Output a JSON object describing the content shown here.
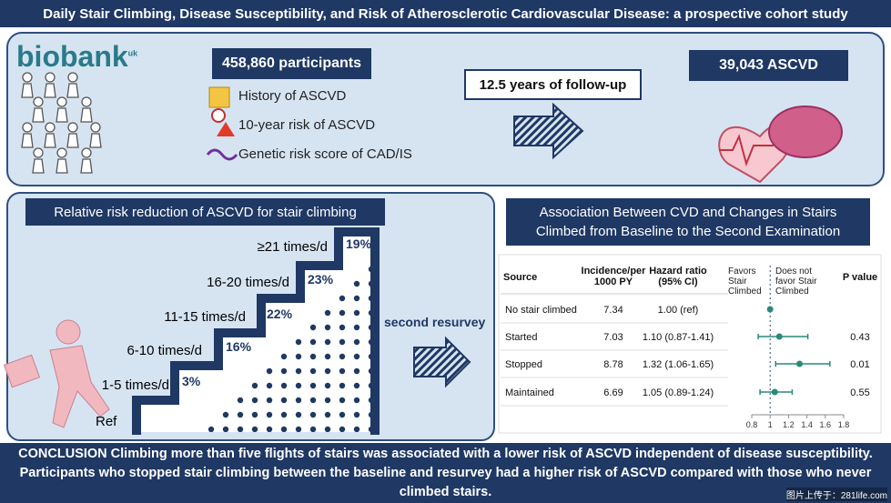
{
  "header": {
    "title": "Daily Stair Climbing, Disease Susceptibility, and Risk of Atherosclerotic Cardiovascular Disease: a prospective cohort study"
  },
  "cohort": {
    "logo": "biobank",
    "logo_suffix": "uk",
    "participants": "458,860 participants",
    "items": [
      "History of ASCVD",
      "10-year risk of ASCVD",
      "Genetic risk score of CAD/IS"
    ],
    "follow_up": "12.5 years of follow-up",
    "outcome": "39,043 ASCVD"
  },
  "risk_panel": {
    "title": "Relative risk reduction of ASCVD for stair climbing",
    "baseline": "Ref",
    "steps": [
      {
        "label": "1-5 times/d",
        "reduction": "3%"
      },
      {
        "label": "6-10 times/d",
        "reduction": "16%"
      },
      {
        "label": "11-15 times/d",
        "reduction": "22%"
      },
      {
        "label": "16-20 times/d",
        "reduction": "23%"
      },
      {
        "label": "≥21 times/d",
        "reduction": "19%"
      }
    ],
    "transition": "second resurvey"
  },
  "association": {
    "title": "Association Between CVD and Changes in Stairs Climbed from Baseline to the Second Examination",
    "columns": [
      "Source",
      "Incidence/per 1000 PY",
      "Hazard ratio (95% CI)",
      "P value"
    ],
    "favors_left": "Favors Stair Climbed",
    "favors_right": "Does not favor Stair Climbed",
    "rows": [
      {
        "source": "No stair climbed",
        "incidence": "7.34",
        "hr": "1.00 (ref)"
      },
      {
        "source": "Started",
        "incidence": "7.03",
        "hr": "1.10 (0.87-1.41)",
        "p": "0.43"
      },
      {
        "source": "Stopped",
        "incidence": "8.78",
        "hr": "1.32 (1.06-1.65)",
        "p": "0.01"
      },
      {
        "source": "Maintained",
        "incidence": "6.69",
        "hr": "1.05 (0.89-1.24)",
        "p": "0.55"
      }
    ],
    "forest": {
      "points": [
        {
          "estimate": 1.0
        },
        {
          "estimate": 1.1,
          "ci": [
            0.87,
            1.41
          ]
        },
        {
          "estimate": 1.32,
          "ci": [
            1.06,
            1.65
          ]
        },
        {
          "estimate": 1.05,
          "ci": [
            0.89,
            1.24
          ]
        }
      ],
      "xlim": [
        0.8,
        1.8
      ],
      "xticks": [
        0.8,
        1,
        1.2,
        1.4,
        1.6,
        1.8
      ],
      "reference": 1,
      "color": "#2a8a7a"
    }
  },
  "conclusion": "CONCLUSION Climbing more than five flights of stairs was associated with a lower risk of ASCVD  independent of disease susceptibility. Participants who stopped stair climbing between the baseline and resurvey had a higher risk of ASCVD compared with those who never climbed stairs.",
  "watermark": "图片上传于：281life.com"
}
